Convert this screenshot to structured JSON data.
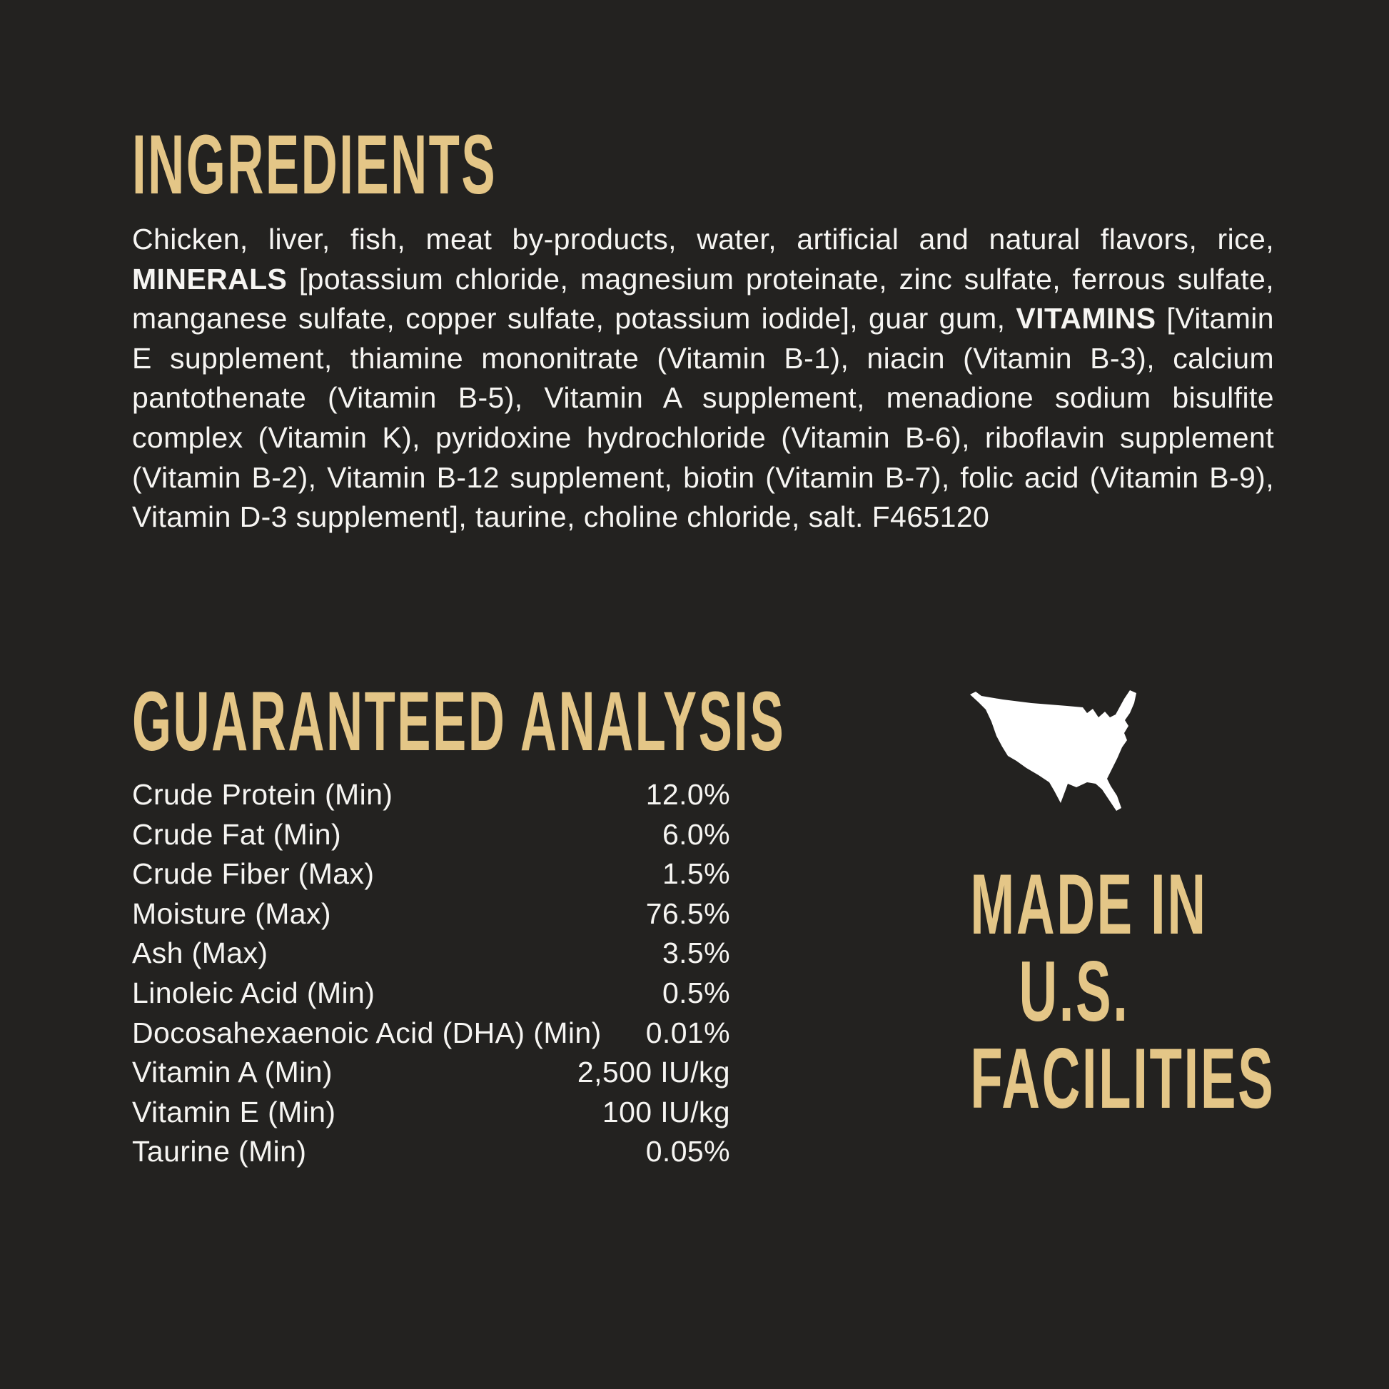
{
  "colors": {
    "background": "#232220",
    "accent_gold": "#e4c687",
    "text_white": "#f6f5f2"
  },
  "ingredients": {
    "title": "INGREDIENTS",
    "segments": [
      {
        "text": "Chicken, liver, fish, meat by-products, water, artificial and natural flavors, rice, ",
        "bold": false
      },
      {
        "text": "MINERALS",
        "bold": true
      },
      {
        "text": " [potassium chloride, magnesium proteinate, zinc sulfate, ferrous sulfate, manganese sulfate, copper sulfate, potassium iodide], guar gum, ",
        "bold": false
      },
      {
        "text": "VITAMINS",
        "bold": true
      },
      {
        "text": " [Vitamin E supplement, thiamine mononitrate (Vitamin B-1), niacin (Vitamin B-3), calcium pantothenate (Vitamin B-5), Vitamin A supplement, menadione sodium bisulfite complex (Vitamin K), pyridoxine hydrochloride (Vitamin B-6), riboflavin supplement (Vitamin B-2), Vitamin B-12 supplement, biotin (Vitamin B-7), folic acid (Vitamin B-9), Vitamin D-3 supplement], taurine, choline chloride, salt. F465120",
        "bold": false
      }
    ]
  },
  "analysis": {
    "title": "GUARANTEED ANALYSIS",
    "rows": [
      {
        "label": "Crude Protein (Min)",
        "value": "12.0%"
      },
      {
        "label": "Crude Fat (Min)",
        "value": "6.0%"
      },
      {
        "label": "Crude Fiber (Max)",
        "value": "1.5%"
      },
      {
        "label": "Moisture (Max)",
        "value": "76.5%"
      },
      {
        "label": "Ash (Max)",
        "value": "3.5%"
      },
      {
        "label": "Linoleic Acid (Min)",
        "value": "0.5%"
      },
      {
        "label": "Docosahexaenoic Acid (DHA) (Min)",
        "value": "0.01%"
      },
      {
        "label": "Vitamin A (Min)",
        "value": "2,500 IU/kg"
      },
      {
        "label": "Vitamin E (Min)",
        "value": "100 IU/kg"
      },
      {
        "label": "Taurine (Min)",
        "value": "0.05%"
      }
    ]
  },
  "made_in": {
    "icon": "usa-map-icon",
    "lines": [
      "MADE IN",
      "U.S.",
      "FACILITIES"
    ]
  }
}
